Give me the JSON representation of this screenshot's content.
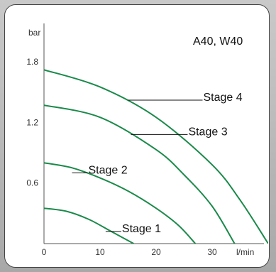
{
  "chart_data": {
    "type": "line",
    "title": "A40, W40",
    "xlabel": "l/min",
    "ylabel": "bar",
    "xlim": [
      0,
      40
    ],
    "ylim": [
      0,
      2.2
    ],
    "x_ticks": [
      "0",
      "10",
      "20",
      "30"
    ],
    "y_ticks": [
      "0.6",
      "1.2",
      "1.8"
    ],
    "grid": false,
    "line_color": "#1a8a4a",
    "series": [
      {
        "name": "Stage 1",
        "x": [
          0,
          4,
          8,
          12,
          16
        ],
        "y": [
          0.35,
          0.32,
          0.24,
          0.12,
          0.0
        ]
      },
      {
        "name": "Stage 2",
        "x": [
          0,
          5,
          10,
          15,
          20,
          24,
          27
        ],
        "y": [
          0.8,
          0.75,
          0.65,
          0.52,
          0.35,
          0.18,
          0.0
        ]
      },
      {
        "name": "Stage 3",
        "x": [
          0,
          10,
          20,
          25,
          30,
          34
        ],
        "y": [
          1.37,
          1.25,
          0.93,
          0.68,
          0.37,
          0.0
        ]
      },
      {
        "name": "Stage 4",
        "x": [
          0,
          10,
          20,
          30,
          35,
          40
        ],
        "y": [
          1.72,
          1.55,
          1.25,
          0.78,
          0.43,
          0.0
        ]
      }
    ]
  }
}
